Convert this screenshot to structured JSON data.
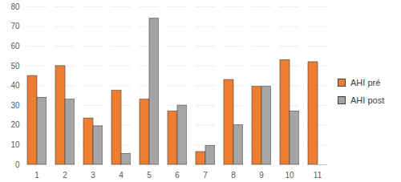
{
  "chart_data": {
    "type": "bar",
    "categories": [
      "1",
      "2",
      "3",
      "4",
      "5",
      "6",
      "7",
      "8",
      "9",
      "10",
      "11"
    ],
    "series": [
      {
        "name": "AHI pré",
        "color": "#ed7d31",
        "values": [
          45,
          50,
          23.5,
          37.5,
          33,
          27,
          6.5,
          43,
          39.5,
          53,
          52
        ]
      },
      {
        "name": "AHI post",
        "color": "#a5a5a5",
        "values": [
          34,
          33,
          19.5,
          5.5,
          74,
          30,
          9.5,
          20,
          39.5,
          27,
          null
        ]
      }
    ],
    "ylim": [
      0,
      80
    ],
    "yticks": [
      0,
      10,
      20,
      30,
      40,
      50,
      60,
      70,
      80
    ],
    "grid": true,
    "legend": "right"
  }
}
